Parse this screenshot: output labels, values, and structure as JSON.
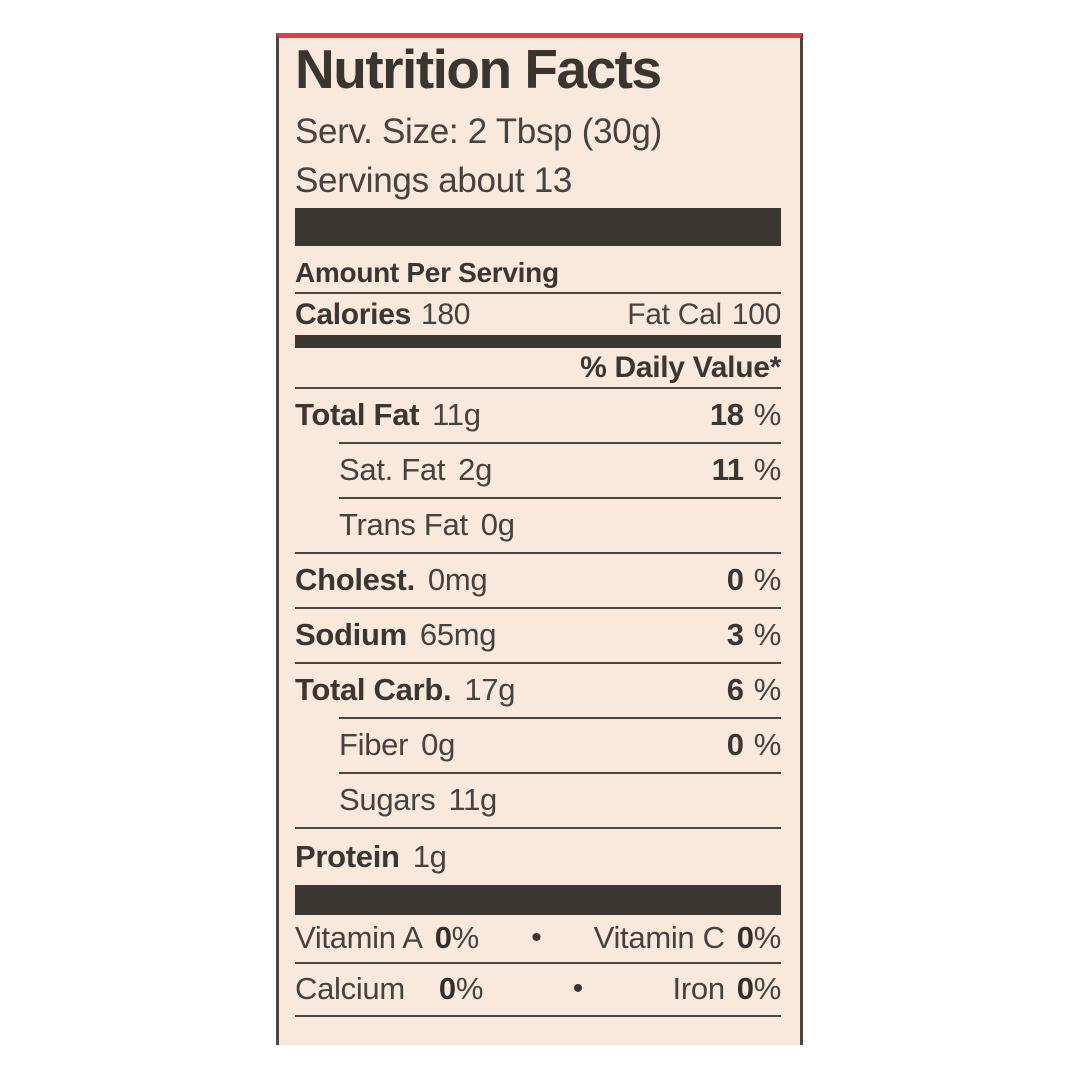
{
  "panel": {
    "title": "Nutrition Facts",
    "serving_size": "Serv. Size: 2 Tbsp (30g)",
    "servings_count": "Servings about 13",
    "amount_per_serving": "Amount Per Serving",
    "calories": {
      "label": "Calories",
      "value": "180"
    },
    "fat_calories": {
      "label": "Fat Cal",
      "value": "100"
    },
    "daily_value_header": "% Daily Value*",
    "nutrients": [
      {
        "name": "Total Fat",
        "amount": "11g",
        "daily_value": "18",
        "percent_sign": "%"
      },
      {
        "name": "Sat. Fat",
        "amount": "2g",
        "daily_value": "11",
        "percent_sign": "%"
      },
      {
        "name": "Trans Fat",
        "amount": "0g",
        "daily_value": "",
        "percent_sign": ""
      },
      {
        "name": "Cholest.",
        "amount": "0mg",
        "daily_value": "0",
        "percent_sign": "%"
      },
      {
        "name": "Sodium",
        "amount": "65mg",
        "daily_value": "3",
        "percent_sign": "%"
      },
      {
        "name": "Total Carb.",
        "amount": "17g",
        "daily_value": "6",
        "percent_sign": "%"
      },
      {
        "name": "Fiber",
        "amount": "0g",
        "daily_value": "0",
        "percent_sign": "%"
      },
      {
        "name": "Sugars",
        "amount": "11g",
        "daily_value": "",
        "percent_sign": ""
      },
      {
        "name": "Protein",
        "amount": "1g",
        "daily_value": "",
        "percent_sign": ""
      }
    ],
    "bullet": "•",
    "vitamins": [
      {
        "left_name": "Vitamin A",
        "left_num": "0",
        "left_sign": "%",
        "right_name": "Vitamin C",
        "right_num": "0",
        "right_sign": "%"
      },
      {
        "left_name": "Calcium",
        "left_num": "0",
        "left_sign": "%",
        "right_name": "Iron",
        "right_num": "0",
        "right_sign": "%"
      }
    ],
    "colors": {
      "label_background": "#f9e9dd",
      "ink": "#46423e",
      "bold_ink": "#3a3733",
      "red_stripe": "#e23c4a",
      "border": "#4b4641"
    }
  }
}
